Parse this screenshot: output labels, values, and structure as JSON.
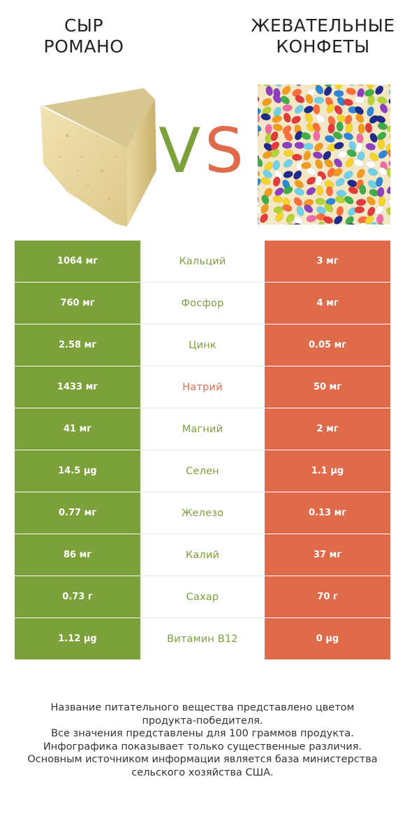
{
  "left_product": {
    "title_line1": "Сыр",
    "title_line2": "романо",
    "color": "#7ca03a"
  },
  "right_product": {
    "title_line1": "Жевательные",
    "title_line2": "конфеты",
    "color": "#e06b4b"
  },
  "vs": {
    "v": "V",
    "s": "S"
  },
  "nutrients": [
    {
      "name": "Кальций",
      "left": "1064 мг",
      "right": "3 мг",
      "winner": "left"
    },
    {
      "name": "Фосфор",
      "left": "760 мг",
      "right": "4 мг",
      "winner": "left"
    },
    {
      "name": "Цинк",
      "left": "2.58 мг",
      "right": "0.05 мг",
      "winner": "left"
    },
    {
      "name": "Натрий",
      "left": "1433 мг",
      "right": "50 мг",
      "winner": "right"
    },
    {
      "name": "Магний",
      "left": "41 мг",
      "right": "2 мг",
      "winner": "left"
    },
    {
      "name": "Селен",
      "left": "14.5 µg",
      "right": "1.1 µg",
      "winner": "left"
    },
    {
      "name": "Железо",
      "left": "0.77 мг",
      "right": "0.13 мг",
      "winner": "left"
    },
    {
      "name": "Калий",
      "left": "86 мг",
      "right": "37 мг",
      "winner": "left"
    },
    {
      "name": "Сахар",
      "left": "0.73 г",
      "right": "70 г",
      "winner": "left"
    },
    {
      "name": "Витамин B12",
      "left": "1.12 µg",
      "right": "0 µg",
      "winner": "left"
    }
  ],
  "footer": {
    "line1": "Название питательного вещества представлено цветом",
    "line2": "продукта-победителя.",
    "line3": "Все значения представлены для 100 граммов продукта.",
    "line4": "Инфографика показывает только существенные различия.",
    "line5": "Основным источником информации является база министерства",
    "line6": "сельского хозяйства США."
  }
}
